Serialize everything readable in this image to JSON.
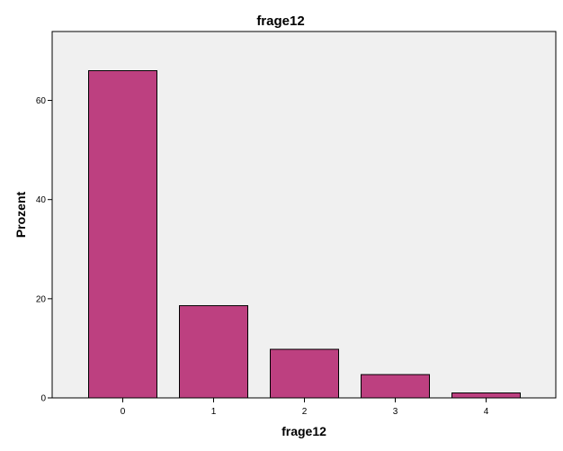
{
  "chart_data": {
    "type": "bar",
    "title": "frage12",
    "xlabel": "frage12",
    "ylabel": "Prozent",
    "categories": [
      "0",
      "1",
      "2",
      "3",
      "4"
    ],
    "values": [
      66.0,
      18.6,
      9.8,
      4.7,
      1.0
    ],
    "ylim": [
      0,
      73.9
    ],
    "yticks": [
      "0",
      "20",
      "40",
      "60"
    ],
    "grid": false,
    "legend": "none",
    "colors": {
      "bar_fill": "#BD4080",
      "bar_stroke": "#000000",
      "plot_background": "#F0F0F0",
      "plot_border": "#000000"
    }
  }
}
